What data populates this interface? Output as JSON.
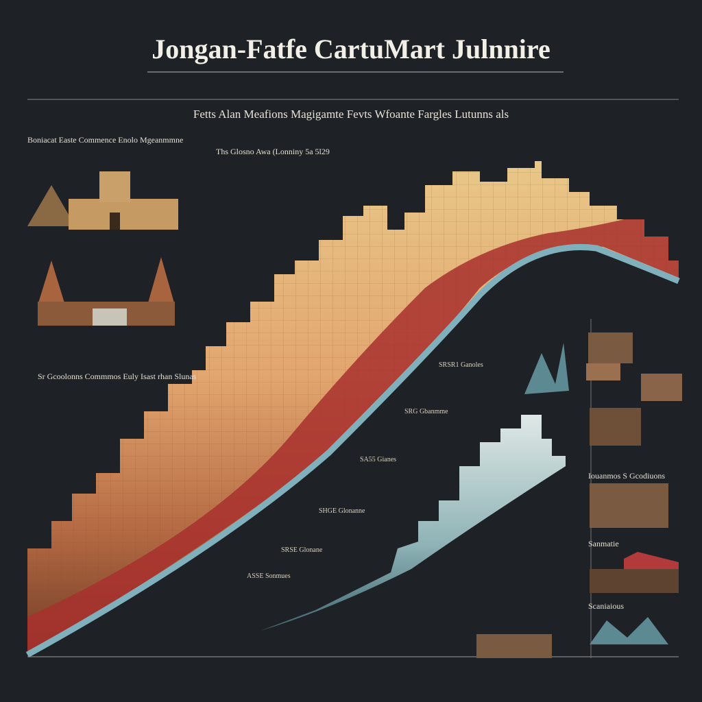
{
  "header": {
    "title": "Jongan-Fatfe CartuMart Julnnire",
    "subtitle": "Fetts Alan Meafions Magigamte Fevts Wfoante Fargles Lutunns als"
  },
  "labels": {
    "left_top": "Boniacat Easte Commence Enolo Mgeanmmne",
    "left_mid": "Sr Gcoolonns Commmos Euly Isast rhan Slunas",
    "right_a": "Iouanmos S Gcodiuons",
    "right_b": "Sanmatie",
    "right_c": "Scaniaious",
    "chart_top": "Ths Glosno Awa (Lonniny 5a 5l29",
    "note_a": "SRSR1 Ganoles",
    "note_b": "SRG Gbanmme",
    "note_c": "SA55 Gianes",
    "note_d": "SHGE Glonanne",
    "note_e": "SRSE Glonane",
    "note_f": "ASSE Sonmues"
  }
}
